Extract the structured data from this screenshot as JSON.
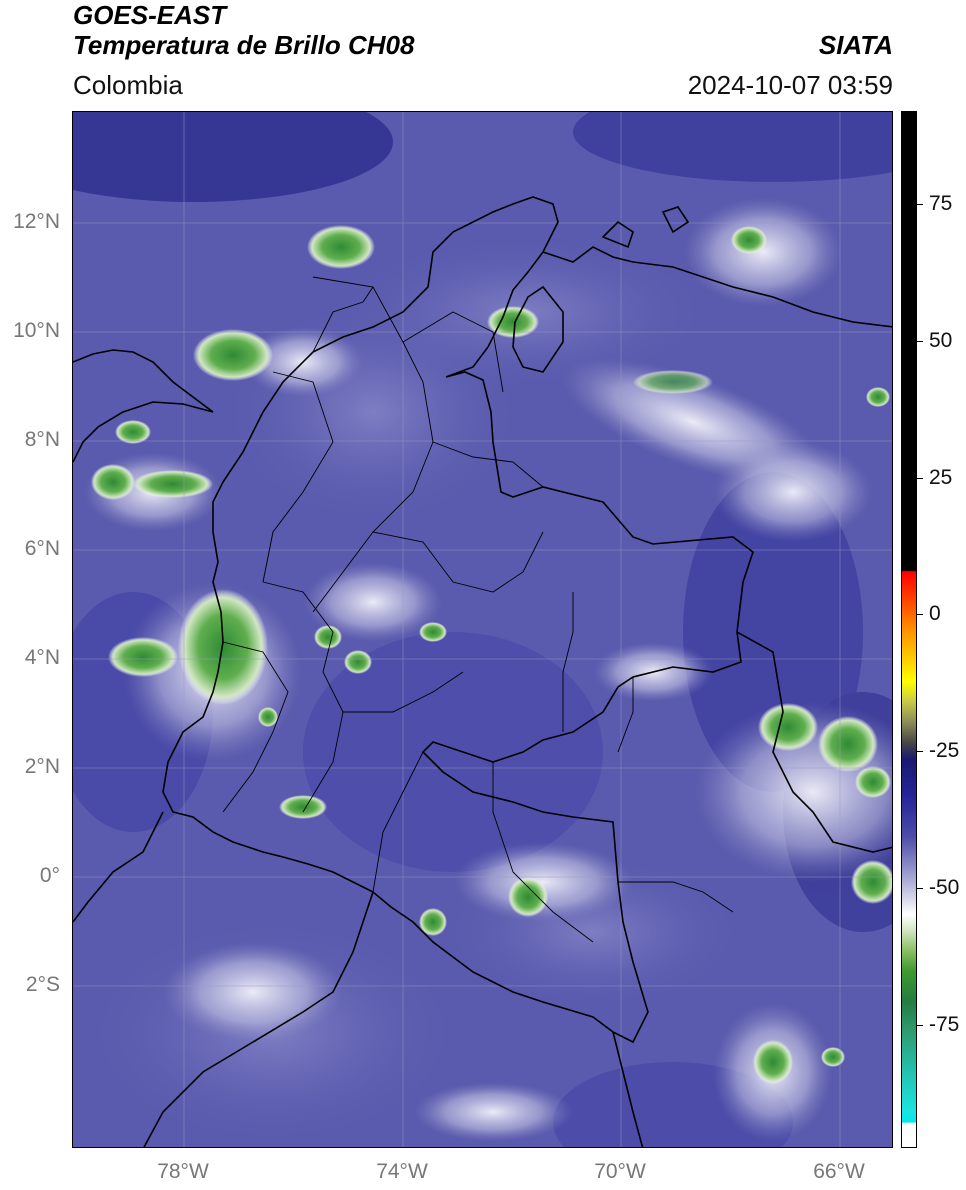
{
  "header": {
    "satellite": "GOES-EAST",
    "product": "Temperatura de Brillo CH08",
    "agency": "SIATA",
    "region": "Colombia",
    "timestamp": "2024-10-07 03:59"
  },
  "map": {
    "lat_labels": [
      "12°N",
      "10°N",
      "8°N",
      "6°N",
      "4°N",
      "2°N",
      "0°",
      "2°S"
    ],
    "lon_labels": [
      "78°W",
      "74°W",
      "70°W",
      "66°W"
    ],
    "colorbar": {
      "labels": [
        "75",
        "50",
        "25",
        "0",
        "-25",
        "-50",
        "-75"
      ],
      "colors": {
        "warm_black": "#000000",
        "red": "#ff0000",
        "yellow": "#ffff00",
        "dark_navy": "#1a1a70",
        "blue": "#4d4da8",
        "white": "#ffffff",
        "green": "#3f9a2f",
        "cyan": "#00e9ea"
      }
    }
  }
}
